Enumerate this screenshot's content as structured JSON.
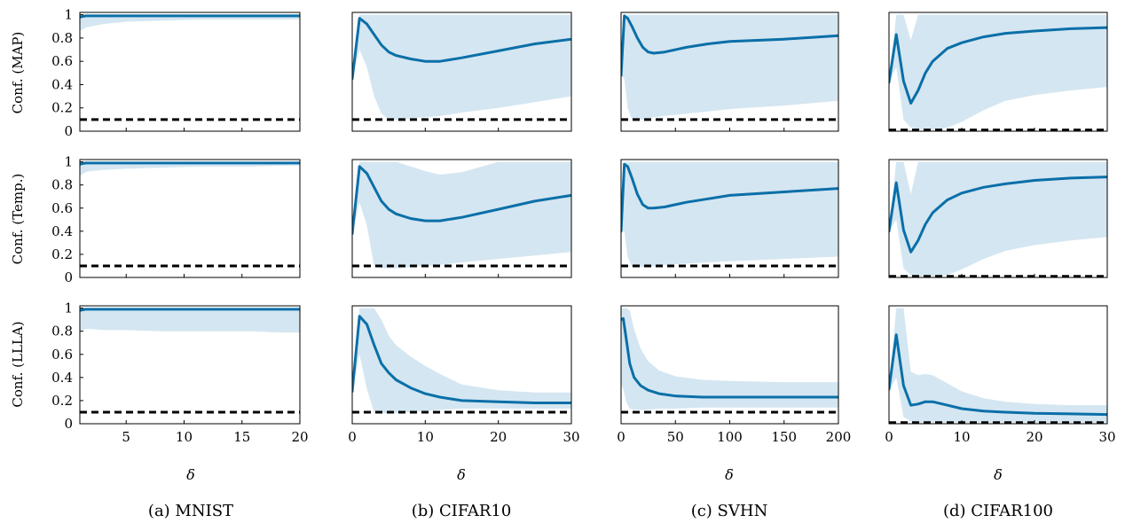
{
  "colors": {
    "line": "#0a6fa8",
    "band": "#d4e6f1",
    "baseline": "#000000"
  },
  "row_labels": [
    "Conf. (MAP)",
    "Conf. (Temp.)",
    "Conf. (LLLA)"
  ],
  "x_label": "δ",
  "captions": [
    "(a) MNIST",
    "(b) CIFAR10",
    "(c) SVHN",
    "(d) CIFAR100"
  ],
  "y_ticks": [
    "0",
    "0.2",
    "0.4",
    "0.6",
    "0.8",
    "1"
  ],
  "chart_data": [
    {
      "type": "line",
      "dataset": "MNIST",
      "method": "MAP",
      "xlim": [
        1,
        20
      ],
      "ylim": [
        0,
        1.02
      ],
      "xticks": [
        5,
        10,
        15,
        20
      ],
      "baseline": 0.1,
      "series": [
        {
          "x": [
            1,
            1.5,
            2,
            3,
            5,
            8,
            12,
            16,
            20
          ],
          "mean": [
            0.98,
            0.99,
            0.99,
            0.99,
            0.99,
            0.99,
            0.99,
            0.99,
            0.99
          ],
          "lower": [
            0.86,
            0.89,
            0.9,
            0.92,
            0.94,
            0.95,
            0.96,
            0.96,
            0.96
          ],
          "upper": [
            1,
            1,
            1,
            1,
            1,
            1,
            1,
            1,
            1
          ]
        }
      ]
    },
    {
      "type": "line",
      "dataset": "CIFAR10",
      "method": "MAP",
      "xlim": [
        0,
        30
      ],
      "ylim": [
        0,
        1.02
      ],
      "xticks": [
        0,
        10,
        20,
        30
      ],
      "baseline": 0.1,
      "series": [
        {
          "x": [
            0,
            1,
            2,
            3,
            4,
            5,
            6,
            8,
            10,
            12,
            15,
            20,
            25,
            30
          ],
          "mean": [
            0.45,
            0.97,
            0.92,
            0.83,
            0.74,
            0.68,
            0.65,
            0.62,
            0.6,
            0.6,
            0.63,
            0.69,
            0.75,
            0.79
          ],
          "lower": [
            0.45,
            0.7,
            0.55,
            0.3,
            0.15,
            0.1,
            0.1,
            0.11,
            0.12,
            0.13,
            0.16,
            0.2,
            0.25,
            0.3
          ],
          "upper": [
            0.45,
            1,
            1,
            1,
            1,
            1,
            1,
            1,
            1,
            1,
            1,
            1,
            1,
            1
          ]
        }
      ]
    },
    {
      "type": "line",
      "dataset": "SVHN",
      "method": "MAP",
      "xlim": [
        0,
        200
      ],
      "ylim": [
        0,
        1.02
      ],
      "xticks": [
        0,
        50,
        100,
        150,
        200
      ],
      "baseline": 0.1,
      "series": [
        {
          "x": [
            0,
            3,
            6,
            10,
            15,
            20,
            25,
            30,
            40,
            60,
            80,
            100,
            150,
            200
          ],
          "mean": [
            0.48,
            0.99,
            0.97,
            0.9,
            0.8,
            0.72,
            0.68,
            0.67,
            0.68,
            0.72,
            0.75,
            0.77,
            0.79,
            0.82
          ],
          "lower": [
            0.48,
            0.45,
            0.2,
            0.1,
            0.1,
            0.1,
            0.11,
            0.12,
            0.13,
            0.15,
            0.17,
            0.19,
            0.22,
            0.26
          ],
          "upper": [
            0.48,
            1,
            1,
            1,
            1,
            1,
            1,
            1,
            1,
            1,
            1,
            1,
            1,
            1
          ]
        }
      ]
    },
    {
      "type": "line",
      "dataset": "CIFAR100",
      "method": "MAP",
      "xlim": [
        0,
        30
      ],
      "ylim": [
        0,
        1.02
      ],
      "xticks": [
        0,
        10,
        20,
        30
      ],
      "baseline": 0.01,
      "series": [
        {
          "x": [
            0,
            1,
            2,
            3,
            4,
            5,
            6,
            8,
            10,
            13,
            16,
            20,
            25,
            30
          ],
          "mean": [
            0.42,
            0.83,
            0.43,
            0.24,
            0.35,
            0.5,
            0.6,
            0.71,
            0.76,
            0.81,
            0.84,
            0.86,
            0.88,
            0.89
          ],
          "lower": [
            0.42,
            0.55,
            0.1,
            0.03,
            0.02,
            0.01,
            0.01,
            0.03,
            0.08,
            0.18,
            0.26,
            0.31,
            0.35,
            0.38
          ],
          "upper": [
            0.42,
            1,
            1,
            0.78,
            1,
            1,
            1,
            1,
            1,
            1,
            1,
            1,
            1,
            1
          ]
        }
      ]
    },
    {
      "type": "line",
      "dataset": "MNIST",
      "method": "Temp.",
      "xlim": [
        1,
        20
      ],
      "ylim": [
        0,
        1.02
      ],
      "xticks": [
        5,
        10,
        15,
        20
      ],
      "baseline": 0.1,
      "series": [
        {
          "x": [
            1,
            1.5,
            2,
            3,
            5,
            8,
            12,
            16,
            20
          ],
          "mean": [
            0.98,
            0.99,
            0.99,
            0.99,
            0.99,
            0.99,
            0.99,
            0.99,
            0.99
          ],
          "lower": [
            0.88,
            0.91,
            0.92,
            0.93,
            0.94,
            0.95,
            0.96,
            0.96,
            0.97
          ],
          "upper": [
            1,
            1,
            1,
            1,
            1,
            1,
            1,
            1,
            1
          ]
        }
      ]
    },
    {
      "type": "line",
      "dataset": "CIFAR10",
      "method": "Temp.",
      "xlim": [
        0,
        30
      ],
      "ylim": [
        0,
        1.02
      ],
      "xticks": [
        0,
        10,
        20,
        30
      ],
      "baseline": 0.1,
      "series": [
        {
          "x": [
            0,
            1,
            2,
            3,
            4,
            5,
            6,
            8,
            10,
            12,
            15,
            20,
            25,
            30
          ],
          "mean": [
            0.38,
            0.96,
            0.9,
            0.78,
            0.66,
            0.59,
            0.55,
            0.51,
            0.49,
            0.49,
            0.52,
            0.59,
            0.66,
            0.71
          ],
          "lower": [
            0.38,
            0.65,
            0.45,
            0.1,
            0.08,
            0.08,
            0.08,
            0.09,
            0.1,
            0.11,
            0.13,
            0.16,
            0.19,
            0.22
          ],
          "upper": [
            0.38,
            1,
            1,
            1,
            1,
            1,
            1,
            0.96,
            0.92,
            0.89,
            0.91,
            1,
            1,
            1
          ]
        }
      ]
    },
    {
      "type": "line",
      "dataset": "SVHN",
      "method": "Temp.",
      "xlim": [
        0,
        200
      ],
      "ylim": [
        0,
        1.02
      ],
      "xticks": [
        0,
        50,
        100,
        150,
        200
      ],
      "baseline": 0.1,
      "series": [
        {
          "x": [
            0,
            3,
            6,
            10,
            15,
            20,
            25,
            30,
            40,
            60,
            80,
            100,
            150,
            200
          ],
          "mean": [
            0.4,
            0.98,
            0.96,
            0.86,
            0.72,
            0.63,
            0.6,
            0.6,
            0.61,
            0.65,
            0.68,
            0.71,
            0.74,
            0.77
          ],
          "lower": [
            0.4,
            0.4,
            0.18,
            0.09,
            0.09,
            0.09,
            0.09,
            0.1,
            0.11,
            0.12,
            0.13,
            0.14,
            0.16,
            0.18
          ],
          "upper": [
            0.4,
            1,
            1,
            1,
            1,
            1,
            1,
            1,
            1,
            1,
            1,
            1,
            1,
            1
          ]
        }
      ]
    },
    {
      "type": "line",
      "dataset": "CIFAR100",
      "method": "Temp.",
      "xlim": [
        0,
        30
      ],
      "ylim": [
        0,
        1.02
      ],
      "xticks": [
        0,
        10,
        20,
        30
      ],
      "baseline": 0.01,
      "series": [
        {
          "x": [
            0,
            1,
            2,
            3,
            4,
            5,
            6,
            8,
            10,
            13,
            16,
            20,
            25,
            30
          ],
          "mean": [
            0.4,
            0.82,
            0.41,
            0.22,
            0.32,
            0.46,
            0.56,
            0.67,
            0.73,
            0.78,
            0.81,
            0.84,
            0.86,
            0.87
          ],
          "lower": [
            0.4,
            0.5,
            0.08,
            0.02,
            0.01,
            0.01,
            0.01,
            0.02,
            0.07,
            0.16,
            0.23,
            0.28,
            0.32,
            0.35
          ],
          "upper": [
            0.4,
            1,
            1,
            0.72,
            1,
            1,
            1,
            1,
            1,
            1,
            1,
            1,
            1,
            1
          ]
        }
      ]
    },
    {
      "type": "line",
      "dataset": "MNIST",
      "method": "LLLA",
      "xlim": [
        1,
        20
      ],
      "ylim": [
        0,
        1.02
      ],
      "xticks": [
        5,
        10,
        15,
        20
      ],
      "baseline": 0.1,
      "series": [
        {
          "x": [
            1,
            1.5,
            2,
            3,
            5,
            8,
            12,
            16,
            18,
            20
          ],
          "mean": [
            0.98,
            0.99,
            0.99,
            0.99,
            0.99,
            0.99,
            0.99,
            0.99,
            0.99,
            0.99
          ],
          "lower": [
            0.8,
            0.82,
            0.82,
            0.81,
            0.81,
            0.8,
            0.8,
            0.8,
            0.79,
            0.79
          ],
          "upper": [
            1,
            1,
            1,
            1,
            1,
            1,
            1,
            1,
            1,
            1
          ]
        }
      ]
    },
    {
      "type": "line",
      "dataset": "CIFAR10",
      "method": "LLLA",
      "xlim": [
        0,
        30
      ],
      "ylim": [
        0,
        1.02
      ],
      "xticks": [
        0,
        10,
        20,
        30
      ],
      "baseline": 0.1,
      "series": [
        {
          "x": [
            0,
            1,
            2,
            3,
            4,
            5,
            6,
            8,
            10,
            12,
            15,
            20,
            25,
            30
          ],
          "mean": [
            0.28,
            0.93,
            0.86,
            0.68,
            0.52,
            0.44,
            0.38,
            0.31,
            0.26,
            0.23,
            0.2,
            0.19,
            0.18,
            0.18
          ],
          "lower": [
            0.28,
            0.6,
            0.3,
            0.1,
            0.09,
            0.09,
            0.09,
            0.1,
            0.11,
            0.12,
            0.13,
            0.13,
            0.13,
            0.13
          ],
          "upper": [
            0.28,
            1,
            1,
            1,
            0.9,
            0.76,
            0.68,
            0.58,
            0.5,
            0.43,
            0.34,
            0.29,
            0.27,
            0.27
          ]
        }
      ]
    },
    {
      "type": "line",
      "dataset": "SVHN",
      "method": "LLLA",
      "xlim": [
        0,
        200
      ],
      "ylim": [
        0,
        1.02
      ],
      "xticks": [
        0,
        50,
        100,
        150,
        200
      ],
      "baseline": 0.1,
      "series": [
        {
          "x": [
            0,
            2,
            5,
            8,
            12,
            18,
            25,
            35,
            50,
            75,
            100,
            150,
            200
          ],
          "mean": [
            0.9,
            0.91,
            0.72,
            0.52,
            0.4,
            0.33,
            0.29,
            0.26,
            0.24,
            0.23,
            0.23,
            0.23,
            0.23
          ],
          "lower": [
            0.35,
            0.3,
            0.18,
            0.13,
            0.12,
            0.12,
            0.12,
            0.13,
            0.13,
            0.14,
            0.14,
            0.14,
            0.14
          ],
          "upper": [
            1,
            1,
            1,
            0.98,
            0.82,
            0.65,
            0.54,
            0.46,
            0.41,
            0.38,
            0.37,
            0.36,
            0.36
          ]
        }
      ]
    },
    {
      "type": "line",
      "dataset": "CIFAR100",
      "method": "LLLA",
      "xlim": [
        0,
        30
      ],
      "ylim": [
        0,
        1.02
      ],
      "xticks": [
        0,
        10,
        20,
        30
      ],
      "baseline": 0.01,
      "series": [
        {
          "x": [
            0,
            1,
            2,
            3,
            4,
            5,
            6,
            8,
            10,
            13,
            16,
            20,
            25,
            30
          ],
          "mean": [
            0.3,
            0.77,
            0.33,
            0.16,
            0.17,
            0.19,
            0.19,
            0.16,
            0.13,
            0.11,
            0.1,
            0.09,
            0.085,
            0.08
          ],
          "lower": [
            0.28,
            0.4,
            0.06,
            0.02,
            0.01,
            0.01,
            0.01,
            0.01,
            0.01,
            0.01,
            0.01,
            0.01,
            0.01,
            0.01
          ],
          "upper": [
            0.3,
            1,
            1,
            0.45,
            0.42,
            0.43,
            0.42,
            0.35,
            0.28,
            0.22,
            0.19,
            0.17,
            0.16,
            0.16
          ]
        }
      ]
    }
  ]
}
